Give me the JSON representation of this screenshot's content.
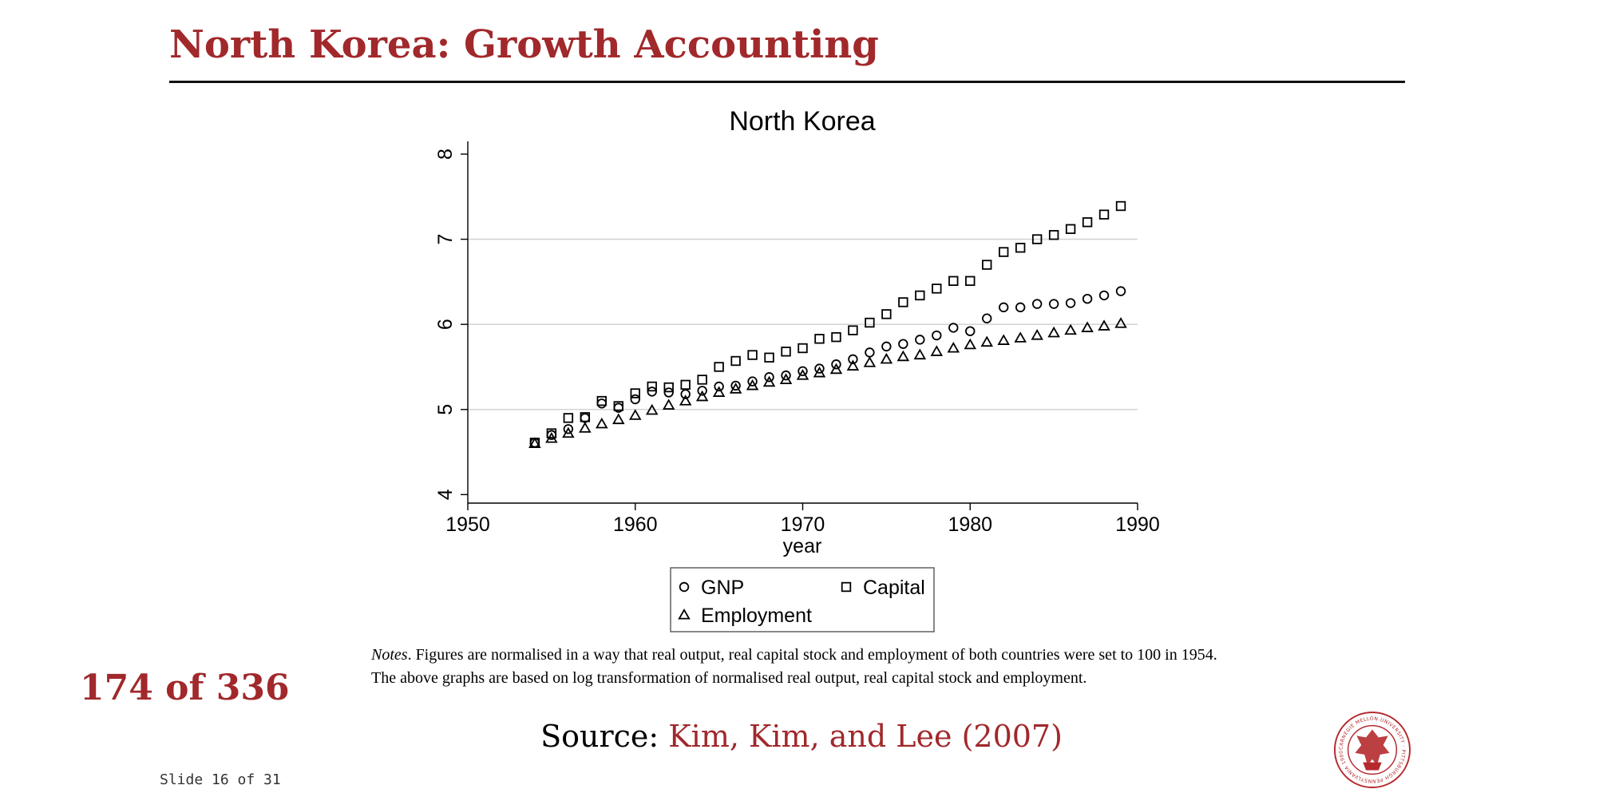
{
  "slide": {
    "title": "North Korea: Growth Accounting",
    "counter": "174 of 336",
    "slide_number": "Slide 16 of 31",
    "notes_label": "Notes",
    "notes_text": ". Figures are normalised in a way that real output, real capital stock and employment of both countries were set to 100 in 1954. The above graphs are based on log transformation of normalised real output, real capital stock and employment.",
    "source_label": "Source:",
    "source_citation": "Kim, Kim, and Lee (2007)",
    "logo_text": "CARNEGIE MELLON UNIVERSITY · PITTSBURGH PENNSYLVANIA 1900",
    "accent_color": "#a1282b"
  },
  "chart_data": {
    "type": "scatter",
    "title": "North Korea",
    "xlabel": "year",
    "ylabel": "",
    "xlim": [
      1950,
      1990
    ],
    "ylim": [
      3.9,
      8.15
    ],
    "xticks": [
      1950,
      1960,
      1970,
      1980,
      1990
    ],
    "yticks": [
      4,
      5,
      6,
      7,
      8
    ],
    "grid": "horizontal",
    "legend_position": "bottom",
    "x": [
      1954,
      1955,
      1956,
      1957,
      1958,
      1959,
      1960,
      1961,
      1962,
      1963,
      1964,
      1965,
      1966,
      1967,
      1968,
      1969,
      1970,
      1971,
      1972,
      1973,
      1974,
      1975,
      1976,
      1977,
      1978,
      1979,
      1980,
      1981,
      1982,
      1983,
      1984,
      1985,
      1986,
      1987,
      1988,
      1989
    ],
    "series": [
      {
        "name": "GNP",
        "marker": "circle",
        "values": [
          4.61,
          4.7,
          4.77,
          4.9,
          5.07,
          5.02,
          5.12,
          5.21,
          5.2,
          5.18,
          5.22,
          5.27,
          5.28,
          5.33,
          5.38,
          5.4,
          5.45,
          5.48,
          5.53,
          5.59,
          5.67,
          5.74,
          5.77,
          5.82,
          5.87,
          5.96,
          5.92,
          6.07,
          6.2,
          6.2,
          6.24,
          6.24,
          6.25,
          6.3,
          6.34,
          6.39
        ]
      },
      {
        "name": "Capital",
        "marker": "square",
        "values": [
          4.61,
          4.72,
          4.9,
          4.91,
          5.1,
          5.04,
          5.19,
          5.27,
          5.26,
          5.29,
          5.35,
          5.5,
          5.57,
          5.64,
          5.61,
          5.68,
          5.72,
          5.83,
          5.85,
          5.93,
          6.02,
          6.12,
          6.26,
          6.34,
          6.42,
          6.51,
          6.51,
          6.7,
          6.85,
          6.9,
          7.0,
          7.05,
          7.12,
          7.2,
          7.29,
          7.39
        ]
      },
      {
        "name": "Employment",
        "marker": "triangle",
        "values": [
          4.6,
          4.66,
          4.72,
          4.78,
          4.83,
          4.88,
          4.93,
          4.99,
          5.05,
          5.1,
          5.15,
          5.2,
          5.24,
          5.28,
          5.32,
          5.35,
          5.4,
          5.43,
          5.47,
          5.51,
          5.55,
          5.59,
          5.62,
          5.64,
          5.68,
          5.72,
          5.76,
          5.79,
          5.81,
          5.84,
          5.87,
          5.9,
          5.93,
          5.96,
          5.98,
          6.01
        ]
      }
    ],
    "legend_order": [
      "GNP",
      "Capital",
      "Employment"
    ]
  }
}
